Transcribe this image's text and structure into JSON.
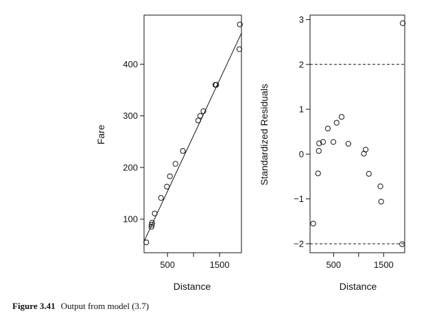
{
  "caption": {
    "label": "Figure 3.41",
    "text": "Output from model (3.7)"
  },
  "chart_data": [
    {
      "type": "scatter",
      "xlabel": "Distance",
      "ylabel": "Fare",
      "xlim": [
        50,
        1920
      ],
      "ylim": [
        35,
        495
      ],
      "xticks": [
        500,
        1000,
        1500
      ],
      "xtick_labels": [
        "500",
        "",
        "1500"
      ],
      "yticks": [
        100,
        200,
        300,
        400
      ],
      "yticklabels": [
        "100",
        "200",
        "300",
        "400"
      ],
      "grid": false,
      "series": [
        {
          "points": [
            [
              93,
              55
            ],
            [
              192,
              85
            ],
            [
              198,
              89
            ],
            [
              205,
              93
            ],
            [
              255,
              111
            ],
            [
              375,
              141
            ],
            [
              489,
              163
            ],
            [
              546,
              183
            ],
            [
              653,
              207
            ],
            [
              795,
              232
            ],
            [
              1090,
              291
            ],
            [
              1129,
              300
            ],
            [
              1190,
              309
            ],
            [
              1420,
              360
            ],
            [
              1435,
              360
            ],
            [
              1880,
              429
            ],
            [
              1890,
              477
            ]
          ]
        }
      ],
      "fit_line": {
        "x": [
          50,
          1920
        ],
        "y": [
          57,
          460
        ]
      }
    },
    {
      "type": "scatter",
      "xlabel": "Distance",
      "ylabel": "Standardized Residuals",
      "xlim": [
        30,
        1920
      ],
      "ylim": [
        -2.2,
        3.1
      ],
      "xticks": [
        500,
        1000,
        1500
      ],
      "xtick_labels": [
        "500",
        "",
        "1500"
      ],
      "yticks": [
        -2,
        -1,
        0,
        1,
        2,
        3
      ],
      "yticklabels": [
        "−2",
        "−1",
        "0",
        "1",
        "2",
        "3"
      ],
      "grid": false,
      "reference_lines": [
        2,
        -2
      ],
      "series": [
        {
          "points": [
            [
              93,
              -1.55
            ],
            [
              190,
              -0.43
            ],
            [
              205,
              0.07
            ],
            [
              212,
              0.24
            ],
            [
              290,
              0.27
            ],
            [
              385,
              0.57
            ],
            [
              495,
              0.27
            ],
            [
              560,
              0.7
            ],
            [
              660,
              0.83
            ],
            [
              795,
              0.23
            ],
            [
              1105,
              0.01
            ],
            [
              1140,
              0.1
            ],
            [
              1205,
              -0.44
            ],
            [
              1435,
              -0.72
            ],
            [
              1450,
              -1.06
            ],
            [
              1868,
              -2.01
            ],
            [
              1880,
              2.92
            ]
          ]
        }
      ]
    }
  ]
}
